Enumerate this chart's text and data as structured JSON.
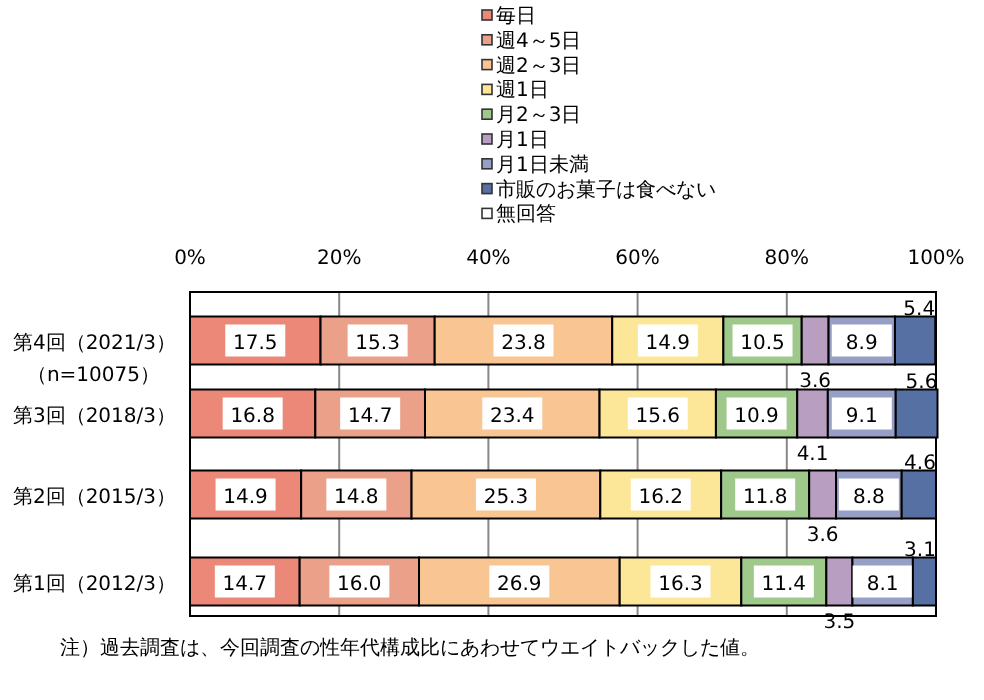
{
  "chart_data": {
    "type": "bar",
    "orientation": "horizontal",
    "stacked": true,
    "legend": "top",
    "grid": "x",
    "categories": [
      "第4回（2021/3）（n=10075）",
      "第3回（2018/3）",
      "第2回（2015/3）",
      "第1回（2012/3）"
    ],
    "xlim": [
      0,
      100
    ],
    "xticks": [
      {
        "value": 0,
        "label": "0%"
      },
      {
        "value": 20,
        "label": "20%"
      },
      {
        "value": 40,
        "label": "40%"
      },
      {
        "value": 60,
        "label": "60%"
      },
      {
        "value": 80,
        "label": "80%"
      },
      {
        "value": 100,
        "label": "100%"
      }
    ],
    "series": [
      {
        "name": "毎日",
        "color": "#ec8878",
        "values": [
          17.5,
          16.8,
          14.9,
          14.7
        ],
        "value_labels": [
          "17.5",
          "16.8",
          "14.9",
          "14.7"
        ]
      },
      {
        "name": "週4～5日",
        "color": "#eba08a",
        "values": [
          15.3,
          14.7,
          14.8,
          16.0
        ],
        "value_labels": [
          "15.3",
          "14.7",
          "14.8",
          "16.0"
        ]
      },
      {
        "name": "週2～3日",
        "color": "#f8c593",
        "values": [
          23.8,
          23.4,
          25.3,
          26.9
        ],
        "value_labels": [
          "23.8",
          "23.4",
          "25.3",
          "26.9"
        ]
      },
      {
        "name": "週1日",
        "color": "#fce697",
        "values": [
          14.9,
          15.6,
          16.2,
          16.3
        ],
        "value_labels": [
          "14.9",
          "15.6",
          "16.2",
          "16.3"
        ]
      },
      {
        "name": "月2～3日",
        "color": "#9fc98a",
        "values": [
          10.5,
          10.9,
          11.8,
          11.4
        ],
        "value_labels": [
          "10.5",
          "10.9",
          "11.8",
          "11.4"
        ]
      },
      {
        "name": "月1日",
        "color": "#b89ec0",
        "values": [
          3.6,
          4.1,
          3.6,
          3.5
        ],
        "value_labels": [
          "3.6",
          "4.1",
          "3.6",
          "3.5"
        ]
      },
      {
        "name": "月1日未満",
        "color": "#979fc7",
        "values": [
          8.9,
          9.1,
          8.8,
          8.1
        ],
        "value_labels": [
          "8.9",
          "9.1",
          "8.8",
          "8.1"
        ]
      },
      {
        "name": "市販のお菓子は食べない",
        "color": "#5670a3",
        "values": [
          5.4,
          5.6,
          4.6,
          3.1
        ],
        "value_labels": [
          "5.4",
          "5.6",
          "4.6",
          "3.1"
        ]
      },
      {
        "name": "無回答",
        "color": "#ffffff",
        "values": [
          null,
          null,
          null,
          null
        ]
      }
    ],
    "annotations": [
      "注）過去調査は、今回調査の性年代構成比にあわせてウエイトバックした値。"
    ]
  }
}
